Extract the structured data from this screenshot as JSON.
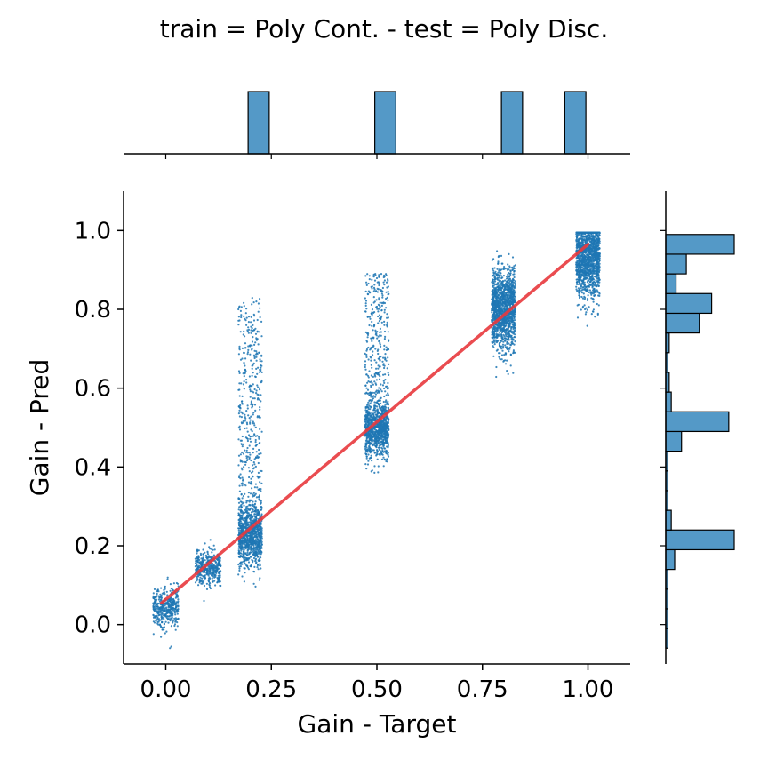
{
  "chart_data": {
    "type": "scatter",
    "title": "train = Poly Cont. - test = Poly Disc.",
    "xlabel": "Gain - Target",
    "ylabel": "Gain - Pred",
    "xlim": [
      -0.1,
      1.1
    ],
    "ylim": [
      -0.1,
      1.1
    ],
    "x_ticks": [
      0.0,
      0.25,
      0.5,
      0.75,
      1.0
    ],
    "x_tick_labels": [
      "0.00",
      "0.25",
      "0.50",
      "0.75",
      "1.00"
    ],
    "y_ticks": [
      0.0,
      0.2,
      0.4,
      0.6,
      0.8,
      1.0
    ],
    "y_tick_labels": [
      "0.0",
      "0.2",
      "0.4",
      "0.6",
      "0.8",
      "1.0"
    ],
    "grid": false,
    "point_color": "#1f77b4",
    "hist_color": "#5499c7",
    "regression_color": "#e8383d",
    "clusters": [
      {
        "x_center": 0.0,
        "x_spread": 0.03,
        "y_center": 0.045,
        "y_spread": 0.025,
        "y_min": -0.07,
        "y_max": 0.12,
        "count": 420
      },
      {
        "x_center": 0.1,
        "x_spread": 0.03,
        "y_center": 0.145,
        "y_spread": 0.022,
        "y_min": 0.04,
        "y_max": 0.23,
        "count": 420
      },
      {
        "x_center": 0.2,
        "x_spread": 0.028,
        "y_center": 0.225,
        "y_spread": 0.04,
        "y_min": 0.02,
        "y_max": 0.92,
        "count": 1400,
        "tail_max": 0.83,
        "tail_fraction": 0.3
      },
      {
        "x_center": 0.5,
        "x_spread": 0.028,
        "y_center": 0.495,
        "y_spread": 0.035,
        "y_min": 0.22,
        "y_max": 0.98,
        "count": 1300,
        "tail_max": 0.89,
        "tail_fraction": 0.3
      },
      {
        "x_center": 0.8,
        "x_spread": 0.028,
        "y_center": 0.8,
        "y_spread": 0.05,
        "y_min": 0.42,
        "y_max": 0.995,
        "count": 1400
      },
      {
        "x_center": 1.0,
        "x_spread": 0.028,
        "y_center": 0.935,
        "y_spread": 0.05,
        "y_min": 0.6,
        "y_max": 0.995,
        "count": 1400
      }
    ],
    "regression_line": {
      "x": [
        -0.01,
        1.0
      ],
      "y": [
        0.055,
        0.965
      ]
    },
    "marginal_x_histogram": {
      "bins": [
        {
          "x0": 0.195,
          "x1": 0.245,
          "count": 1
        },
        {
          "x0": 0.495,
          "x1": 0.545,
          "count": 1
        },
        {
          "x0": 0.795,
          "x1": 0.845,
          "count": 1
        },
        {
          "x0": 0.945,
          "x1": 0.995,
          "count": 1
        }
      ]
    },
    "marginal_y_histogram": {
      "bins": [
        {
          "y0": -0.06,
          "y1": -0.01,
          "count": 0.03
        },
        {
          "y0": -0.01,
          "y1": 0.04,
          "count": 0.03
        },
        {
          "y0": 0.04,
          "y1": 0.09,
          "count": 0.03
        },
        {
          "y0": 0.09,
          "y1": 0.14,
          "count": 0.03
        },
        {
          "y0": 0.14,
          "y1": 0.19,
          "count": 0.13
        },
        {
          "y0": 0.19,
          "y1": 0.24,
          "count": 1.0
        },
        {
          "y0": 0.24,
          "y1": 0.29,
          "count": 0.08
        },
        {
          "y0": 0.29,
          "y1": 0.34,
          "count": 0.03
        },
        {
          "y0": 0.34,
          "y1": 0.39,
          "count": 0.03
        },
        {
          "y0": 0.39,
          "y1": 0.44,
          "count": 0.03
        },
        {
          "y0": 0.44,
          "y1": 0.49,
          "count": 0.23
        },
        {
          "y0": 0.49,
          "y1": 0.54,
          "count": 0.92
        },
        {
          "y0": 0.54,
          "y1": 0.59,
          "count": 0.08
        },
        {
          "y0": 0.59,
          "y1": 0.64,
          "count": 0.05
        },
        {
          "y0": 0.64,
          "y1": 0.69,
          "count": 0.03
        },
        {
          "y0": 0.69,
          "y1": 0.74,
          "count": 0.05
        },
        {
          "y0": 0.74,
          "y1": 0.79,
          "count": 0.49
        },
        {
          "y0": 0.79,
          "y1": 0.84,
          "count": 0.67
        },
        {
          "y0": 0.84,
          "y1": 0.89,
          "count": 0.15
        },
        {
          "y0": 0.89,
          "y1": 0.94,
          "count": 0.3
        },
        {
          "y0": 0.94,
          "y1": 0.99,
          "count": 1.0
        }
      ]
    }
  }
}
